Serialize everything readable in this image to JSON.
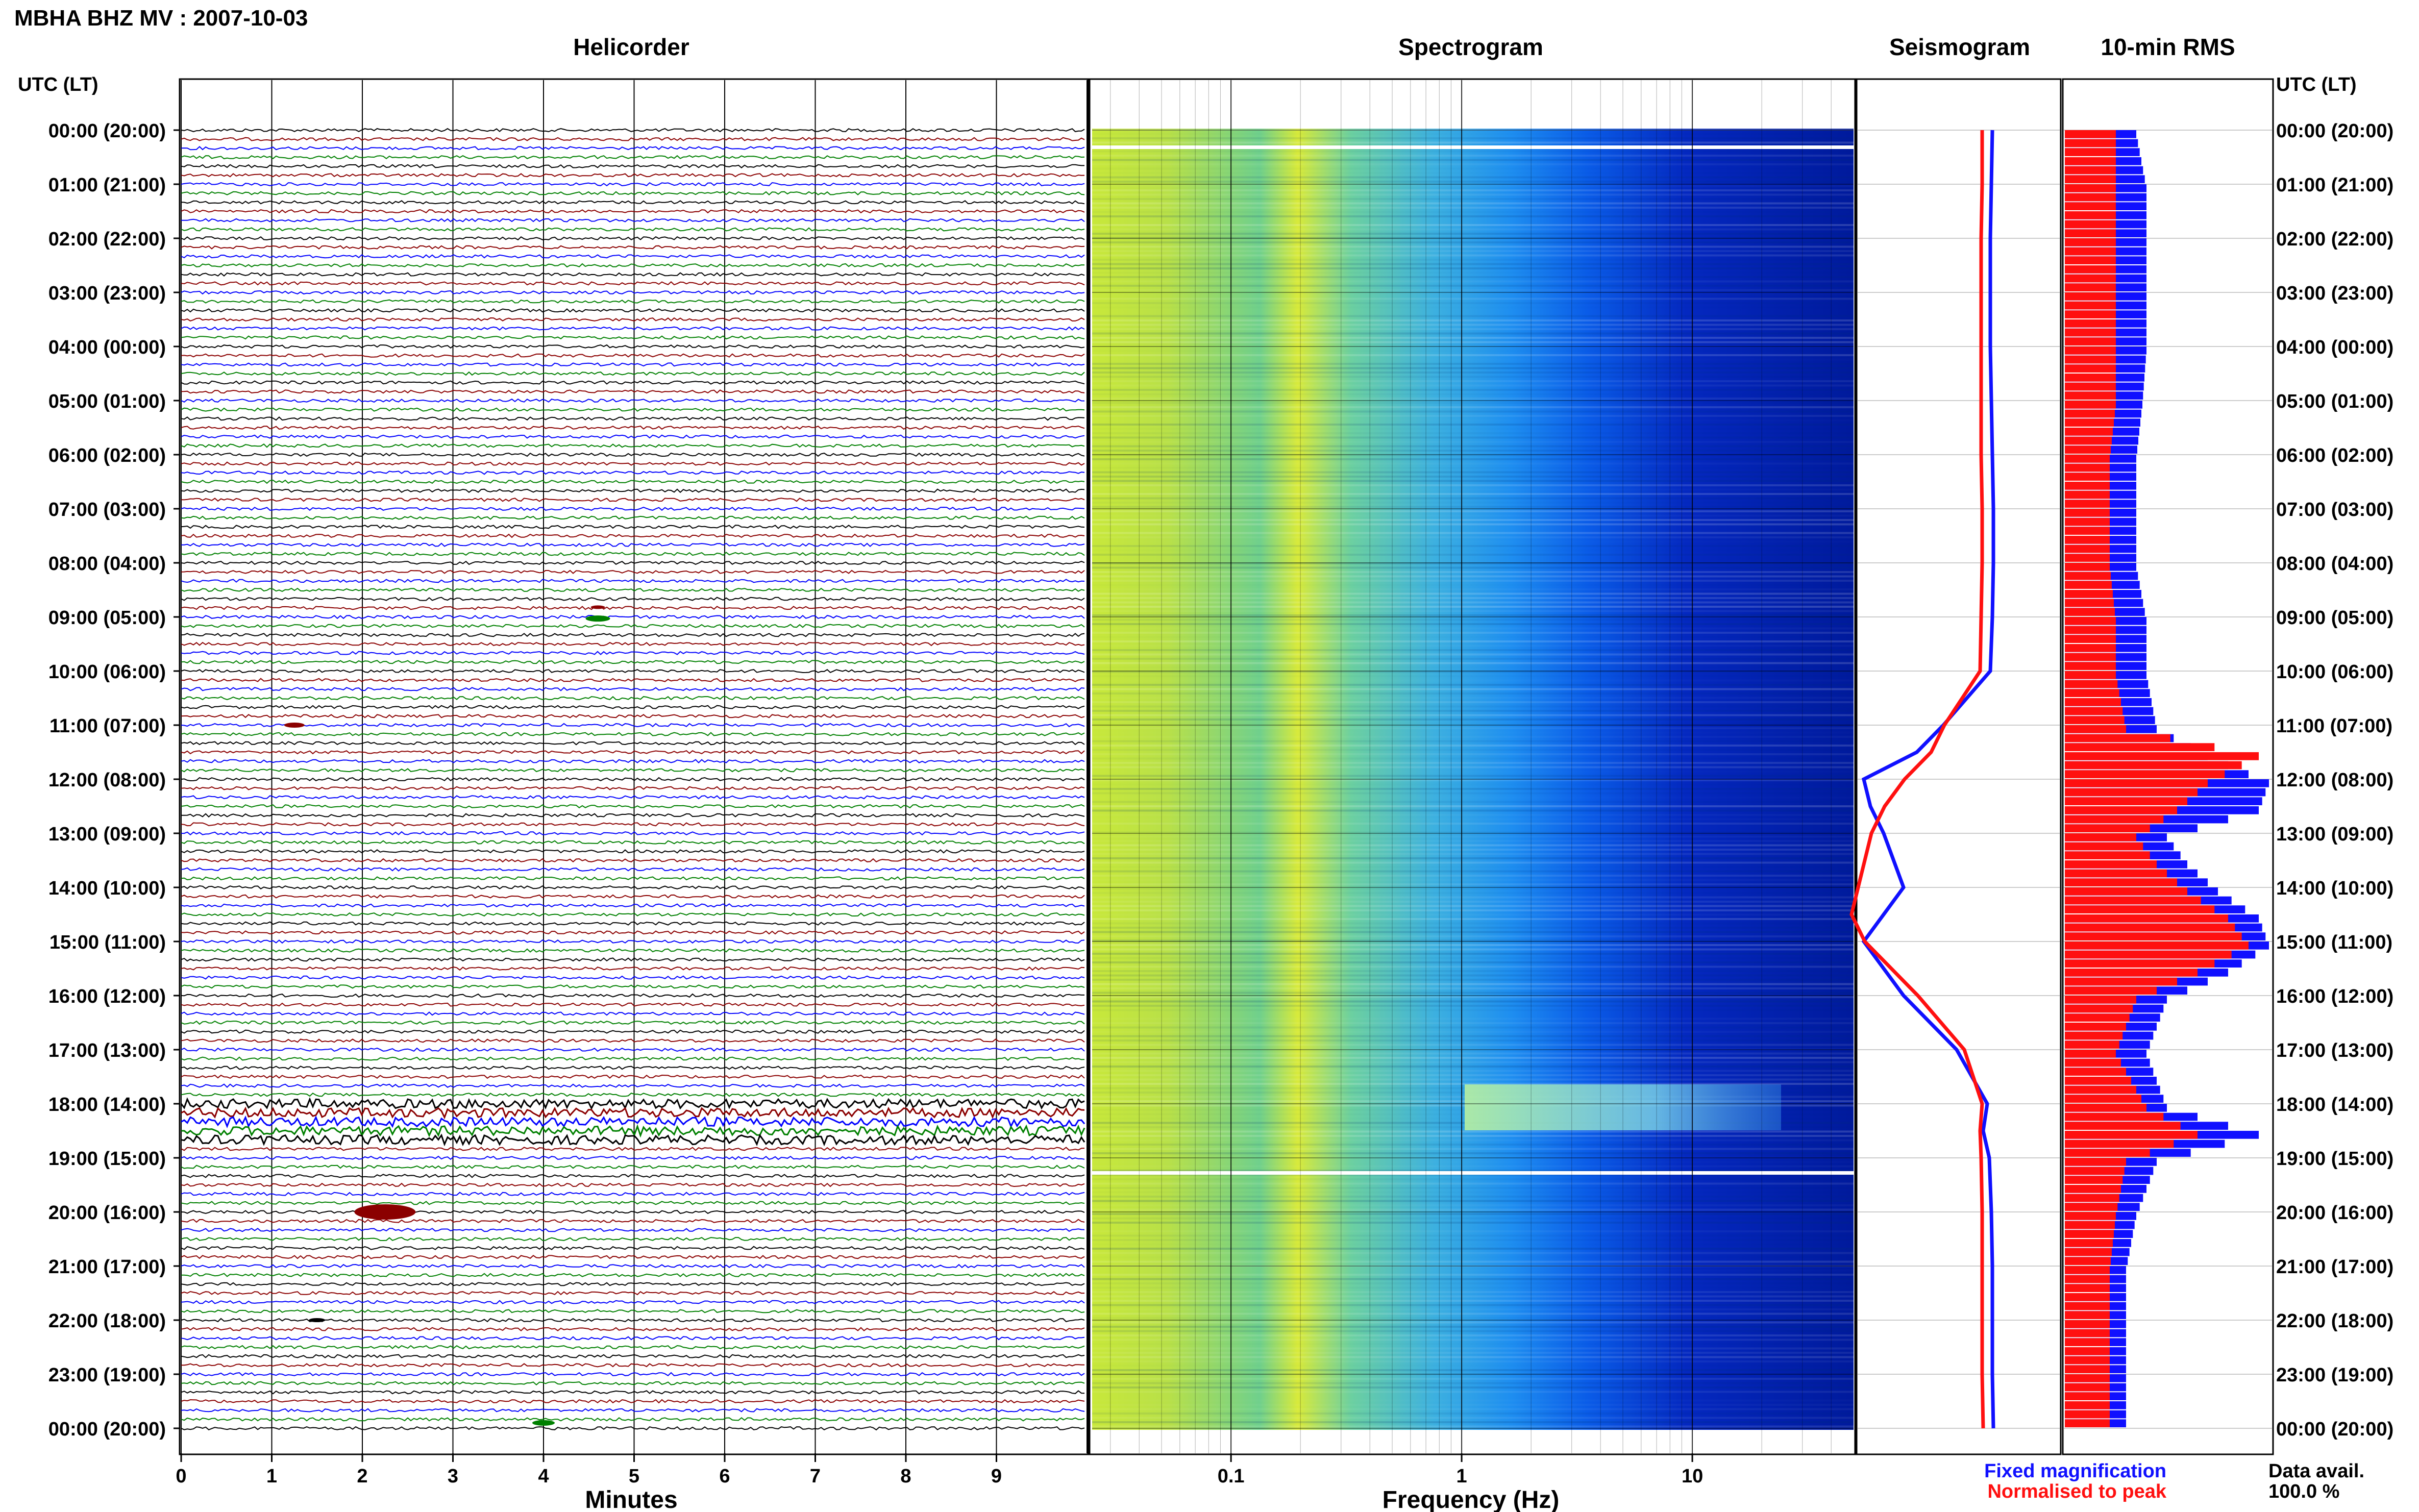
{
  "header": {
    "station_title": "MBHA BHZ MV : 2007-10-03",
    "time_axis_label": "UTC (LT)"
  },
  "panels": {
    "helicorder": {
      "title": "Helicorder",
      "xlabel": "Minutes",
      "xticks": [
        "0",
        "1",
        "2",
        "3",
        "4",
        "5",
        "6",
        "7",
        "8",
        "9"
      ],
      "trace_colors": [
        "#000000",
        "#8b0000",
        "#0000ff",
        "#008000"
      ]
    },
    "spectrogram": {
      "title": "Spectrogram",
      "xlabel": "Frequency (Hz)",
      "xticks": [
        "0.1",
        "1",
        "10"
      ]
    },
    "seismogram": {
      "title": "Seismogram"
    },
    "rms": {
      "title": "10-min RMS"
    }
  },
  "legend": {
    "fixed_label": "Fixed magnification",
    "fixed_color": "#1010ff",
    "normalised_label": "Normalised to peak",
    "normalised_color": "#ff1010"
  },
  "data_availability": {
    "label": "Data avail.",
    "value": "100.0 %"
  },
  "time_labels": [
    "00:00 (20:00)",
    "01:00 (21:00)",
    "02:00 (22:00)",
    "03:00 (23:00)",
    "04:00 (00:00)",
    "05:00 (01:00)",
    "06:00 (02:00)",
    "07:00 (03:00)",
    "08:00 (04:00)",
    "09:00 (05:00)",
    "10:00 (06:00)",
    "11:00 (07:00)",
    "12:00 (08:00)",
    "13:00 (09:00)",
    "14:00 (10:00)",
    "15:00 (11:00)",
    "16:00 (12:00)",
    "17:00 (13:00)",
    "18:00 (14:00)",
    "19:00 (15:00)",
    "20:00 (16:00)",
    "21:00 (17:00)",
    "22:00 (18:00)",
    "23:00 (19:00)",
    "00:00 (20:00)"
  ],
  "chart_data": [
    {
      "type": "line",
      "title": "Seismogram",
      "x_unit": "hour UTC",
      "x": [
        0,
        1,
        2,
        3,
        4,
        5,
        6,
        7,
        8,
        9,
        10,
        11,
        11.5,
        12,
        12.5,
        13,
        14,
        14.5,
        15,
        16,
        17,
        18,
        18.5,
        19,
        20,
        21,
        22,
        23,
        24
      ],
      "series": [
        {
          "name": "Fixed magnification",
          "color": "#1010ff",
          "values": [
            0.2,
            0.25,
            0.3,
            0.3,
            0.3,
            0.25,
            0.2,
            0.15,
            0.15,
            0.2,
            0.3,
            0.4,
            0.6,
            1.0,
            0.95,
            0.85,
            0.7,
            0.85,
            1.0,
            0.7,
            0.3,
            0.45,
            0.65,
            0.35,
            0.25,
            0.2,
            0.2,
            0.2,
            0.15
          ]
        },
        {
          "name": "Normalised to peak",
          "color": "#ff1010",
          "values": [
            0.1,
            0.1,
            0.15,
            0.15,
            0.15,
            0.15,
            0.15,
            0.1,
            0.1,
            0.15,
            0.2,
            0.3,
            0.4,
            0.6,
            0.75,
            0.85,
            0.95,
            1.0,
            0.9,
            0.5,
            0.15,
            0.1,
            0.2,
            0.15,
            0.1,
            0.1,
            0.1,
            0.1,
            0.05
          ]
        }
      ]
    },
    {
      "type": "bar",
      "title": "10-min RMS",
      "x_unit": "hour UTC (10-minute bins)",
      "x": [
        0,
        1,
        2,
        3,
        4,
        5,
        6,
        7,
        8,
        9,
        10,
        11,
        11.5,
        12,
        12.5,
        13,
        13.5,
        14,
        14.5,
        15,
        15.5,
        16,
        17,
        18,
        18.5,
        19,
        20,
        21,
        22,
        23
      ],
      "series": [
        {
          "name": "Fixed magnification",
          "color": "#1010ff",
          "values": [
            0.35,
            0.4,
            0.4,
            0.4,
            0.4,
            0.38,
            0.35,
            0.35,
            0.35,
            0.4,
            0.4,
            0.45,
            0.7,
            1.0,
            0.95,
            0.5,
            0.6,
            0.75,
            0.95,
            1.0,
            0.8,
            0.5,
            0.4,
            0.5,
            0.95,
            0.45,
            0.35,
            0.3,
            0.3,
            0.3
          ]
        },
        {
          "name": "Normalised to peak",
          "color": "#ff1010",
          "values": [
            0.25,
            0.25,
            0.25,
            0.25,
            0.25,
            0.25,
            0.22,
            0.22,
            0.22,
            0.25,
            0.25,
            0.3,
            0.95,
            0.7,
            0.55,
            0.35,
            0.45,
            0.6,
            0.8,
            0.9,
            0.65,
            0.35,
            0.25,
            0.4,
            0.65,
            0.3,
            0.25,
            0.22,
            0.22,
            0.22
          ]
        }
      ]
    }
  ]
}
